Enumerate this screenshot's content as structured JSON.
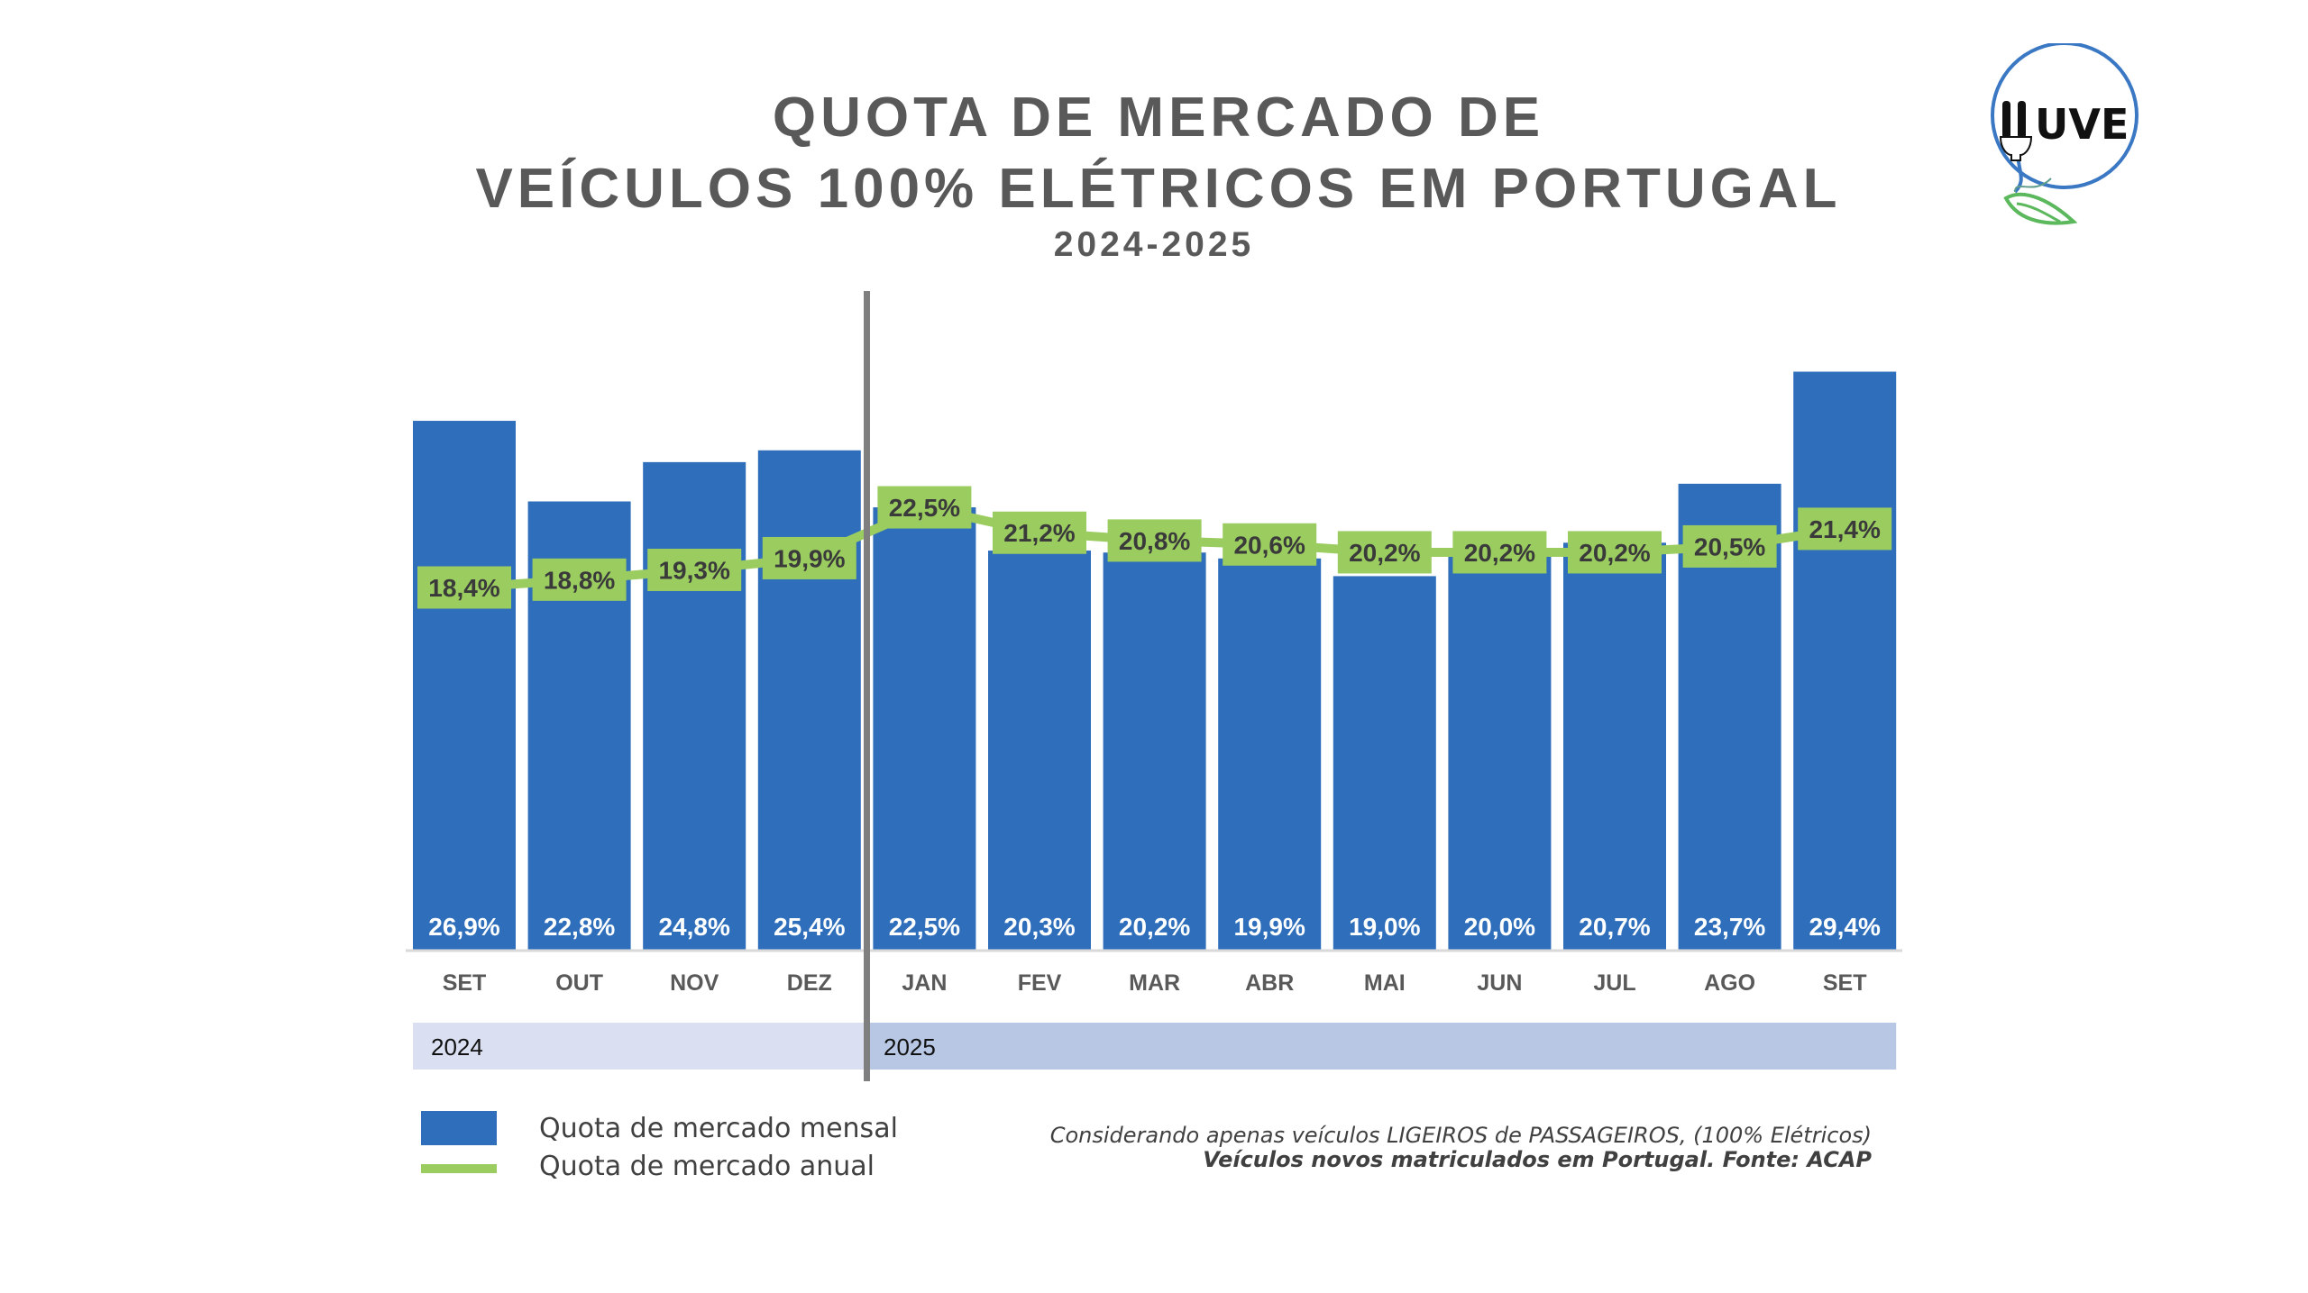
{
  "header": {
    "title_line1": "QUOTA DE MERCADO DE",
    "title_line2": "VEÍCULOS 100% ELÉTRICOS EM PORTUGAL",
    "subtitle": "2024-2025"
  },
  "logo": {
    "text": "UVE",
    "icon": "plug-leaf-logo-icon",
    "colors": {
      "ring": "#3b78c4",
      "leaf": "#5cb85c",
      "text": "#111111"
    }
  },
  "colors": {
    "bar": "#2e6ebb",
    "line": "#9acc60",
    "label_dark": "#3a3a3a",
    "title": "#595959",
    "band_2024": "#dae0f1",
    "band_2025": "#b8c7e4",
    "divider": "#7f7f7f"
  },
  "chart_data": {
    "type": "bar",
    "title": "QUOTA DE MERCADO DE VEÍCULOS 100% ELÉTRICOS EM PORTUGAL",
    "subtitle": "2024-2025",
    "xlabel": "",
    "ylabel": "",
    "categories": [
      "SET",
      "OUT",
      "NOV",
      "DEZ",
      "JAN",
      "FEV",
      "MAR",
      "ABR",
      "MAI",
      "JUN",
      "JUL",
      "AGO",
      "SET"
    ],
    "groups": [
      {
        "label": "2024",
        "from": 0,
        "to": 3
      },
      {
        "label": "2025",
        "from": 4,
        "to": 12
      }
    ],
    "series": [
      {
        "name": "Quota de mercado mensal",
        "type": "bar",
        "values": [
          26.9,
          22.8,
          24.8,
          25.4,
          22.5,
          20.3,
          20.2,
          19.9,
          19.0,
          20.0,
          20.7,
          23.7,
          29.4
        ],
        "labels": [
          "26,9%",
          "22,8%",
          "24,8%",
          "25,4%",
          "22,5%",
          "20,3%",
          "20,2%",
          "19,9%",
          "19,0%",
          "20,0%",
          "20,7%",
          "23,7%",
          "29,4%"
        ]
      },
      {
        "name": "Quota de mercado anual",
        "type": "line",
        "values": [
          18.4,
          18.8,
          19.3,
          19.9,
          22.5,
          21.2,
          20.8,
          20.6,
          20.2,
          20.2,
          20.2,
          20.5,
          21.4
        ],
        "labels": [
          "18,4%",
          "18,8%",
          "19,3%",
          "19,9%",
          "22,5%",
          "21,2%",
          "20,8%",
          "20,6%",
          "20,2%",
          "20,2%",
          "20,2%",
          "20,5%",
          "21,4%"
        ]
      }
    ],
    "ylim": [
      0,
      30
    ],
    "grid": false,
    "legend": "bottom-left"
  },
  "legend": {
    "items": [
      {
        "label": "Quota de mercado mensal",
        "swatch": "bar"
      },
      {
        "label": "Quota de mercado anual",
        "swatch": "line"
      }
    ]
  },
  "footnote": {
    "line1": "Considerando apenas veículos LIGEIROS de PASSAGEIROS, (100% Elétricos)",
    "line2": "Veículos novos matriculados em Portugal. Fonte: ACAP"
  }
}
